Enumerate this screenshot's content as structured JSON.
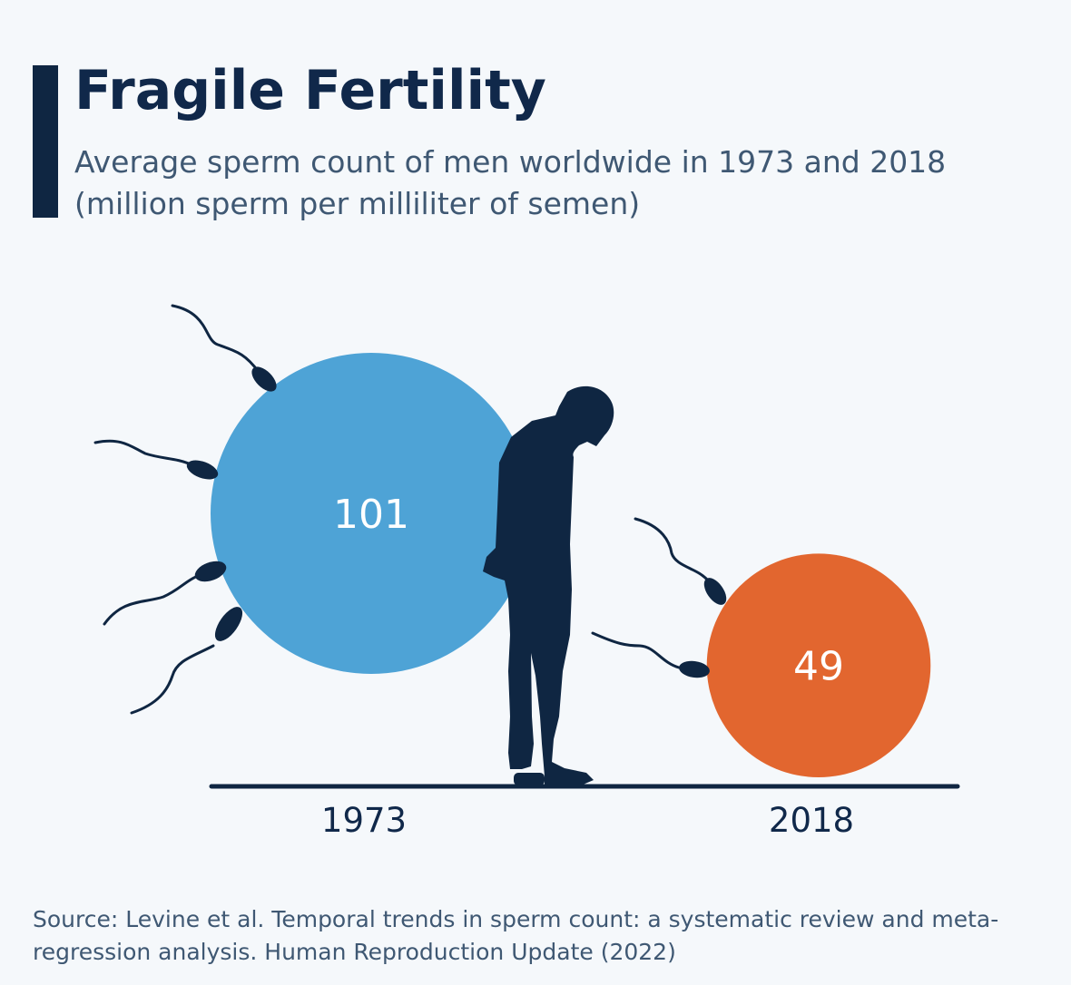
{
  "header": {
    "title": "Fragile Fertility",
    "subtitle": "Average sperm count of men worldwide in 1973 and 2018 (million sperm per milliliter of semen)"
  },
  "chart_data": {
    "type": "bubble",
    "categories": [
      "1973",
      "2018"
    ],
    "values": [
      101,
      49
    ],
    "value_labels": [
      "101",
      "49"
    ],
    "colors": [
      "#4ea3d6",
      "#e2662f"
    ],
    "silhouette_icon": "man-looking-down-icon",
    "decor_icon": "sperm-icon"
  },
  "footer": {
    "source": "Source: Levine et al. Temporal trends in sperm count: a systematic review and meta-regression analysis. Human Reproduction Update (2022)"
  },
  "colors": {
    "background": "#f5f8fb",
    "dark": "#0f2642",
    "text_muted": "#3f5873"
  }
}
